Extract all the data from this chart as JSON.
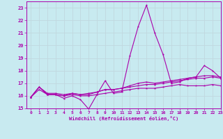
{
  "background_color": "#c8eaf0",
  "grid_color": "#c0d8df",
  "line_color": "#aa00aa",
  "xlabel": "Windchill (Refroidissement éolien,°C)",
  "xlim": [
    -0.5,
    23
  ],
  "ylim": [
    15,
    23.5
  ],
  "yticks": [
    15,
    16,
    17,
    18,
    19,
    20,
    21,
    22,
    23
  ],
  "xticks": [
    0,
    1,
    2,
    3,
    4,
    5,
    6,
    7,
    8,
    9,
    10,
    11,
    12,
    13,
    14,
    15,
    16,
    17,
    18,
    19,
    20,
    21,
    22,
    23
  ],
  "series": [
    [
      15.9,
      16.7,
      16.1,
      16.1,
      15.8,
      16.0,
      15.7,
      14.95,
      16.1,
      17.2,
      16.2,
      16.3,
      19.2,
      21.5,
      23.2,
      21.0,
      19.3,
      17.0,
      17.1,
      17.4,
      17.5,
      18.4,
      18.0,
      17.4
    ],
    [
      15.9,
      16.7,
      16.1,
      16.1,
      16.0,
      16.2,
      16.1,
      16.1,
      16.3,
      16.5,
      16.5,
      16.6,
      16.8,
      17.0,
      17.1,
      17.0,
      17.1,
      17.2,
      17.3,
      17.4,
      17.5,
      17.6,
      17.6,
      17.5
    ],
    [
      15.9,
      16.5,
      16.1,
      16.1,
      16.0,
      16.1,
      16.0,
      16.0,
      16.1,
      16.2,
      16.3,
      16.4,
      16.5,
      16.6,
      16.6,
      16.6,
      16.7,
      16.8,
      16.9,
      16.8,
      16.8,
      16.8,
      16.9,
      16.8
    ],
    [
      15.9,
      16.7,
      16.2,
      16.2,
      16.1,
      16.2,
      16.1,
      16.2,
      16.3,
      16.5,
      16.5,
      16.6,
      16.7,
      16.8,
      16.9,
      16.9,
      17.0,
      17.1,
      17.2,
      17.3,
      17.4,
      17.4,
      17.5,
      17.4
    ]
  ]
}
